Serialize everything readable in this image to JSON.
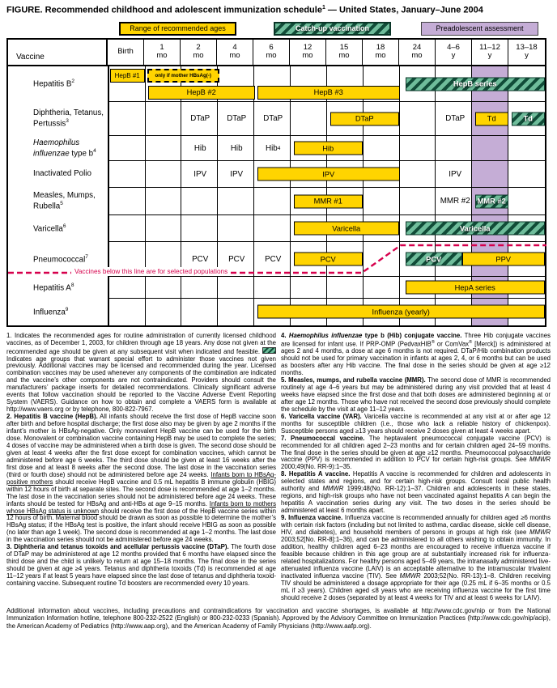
{
  "title": {
    "part1": "FIGURE. Recommended childhood and adolescent immunization schedule",
    "sup": "1",
    "part2": " — United States, January–June 2004"
  },
  "colors": {
    "recommended_yellow": "#FFD400",
    "catchup_green": "#6FBD9B",
    "catchup_stripe": "#114C38",
    "preadolescent_purple": "#C5ADD6",
    "selected_line_red": "#D6004C"
  },
  "legend": {
    "recommended": "Range of recommended ages",
    "catchup": "Catch-up vaccination",
    "preadolescent": "Preadolescent assessment"
  },
  "table": {
    "corner_label": "Vaccine",
    "age_columns": [
      {
        "l1": "Birth",
        "l2": ""
      },
      {
        "l1": "1",
        "l2": "mo"
      },
      {
        "l1": "2",
        "l2": "mo"
      },
      {
        "l1": "4",
        "l2": "mo"
      },
      {
        "l1": "6",
        "l2": "mo"
      },
      {
        "l1": "12",
        "l2": "mo"
      },
      {
        "l1": "15",
        "l2": "mo"
      },
      {
        "l1": "18",
        "l2": "mo"
      },
      {
        "l1": "24",
        "l2": "mo"
      },
      {
        "l1": "4–6",
        "l2": "y"
      },
      {
        "l1": "11–12",
        "l2": "y"
      },
      {
        "l1": "13–18",
        "l2": "y"
      }
    ],
    "rows": {
      "hepb": {
        "label": "Hepatitis B",
        "sup": "2",
        "bars": {
          "b1": "HepB #1",
          "only": "only if mother HBsAg(-)",
          "b2": "HepB #2",
          "b3": "HepB #3",
          "series": "HepB series"
        }
      },
      "dtap": {
        "label1": "Diphtheria, Tetanus,",
        "label2": "Pertussis",
        "sup": "3",
        "cells": {
          "m2": "DTaP",
          "m4": "DTaP",
          "m6": "DTaP",
          "y46": "DTaP"
        },
        "bars": {
          "booster": "DTaP",
          "td": "Td",
          "td_catchup": "Td"
        }
      },
      "hib": {
        "label1": "Haemophilus",
        "label2_italic": "influenzae",
        "label2_rest": " type b",
        "sup": "4",
        "cells": {
          "m2": "Hib",
          "m4": "Hib",
          "m6": "Hib",
          "m6sup": "4"
        },
        "bars": {
          "main": "Hib"
        }
      },
      "polio": {
        "label": "Inactivated Polio",
        "cells": {
          "m2": "IPV",
          "m4": "IPV",
          "y46": "IPV"
        },
        "bars": {
          "main": "IPV"
        }
      },
      "mmr": {
        "label1": "Measles, Mumps,",
        "label2": "Rubella",
        "sup": "5",
        "cells": {
          "y46": "MMR #2"
        },
        "bars": {
          "first": "MMR #1",
          "catchup": "MMR #2"
        }
      },
      "varicella": {
        "label": "Varicella",
        "sup": "6",
        "bars": {
          "main": "Varicella",
          "catchup": "Varicella"
        }
      },
      "pneumo": {
        "label": "Pneumococcal",
        "sup": "7",
        "cells": {
          "m2": "PCV",
          "m4": "PCV",
          "m6": "PCV"
        },
        "bars": {
          "main": "PCV",
          "catchup": "PCV",
          "ppv": "PPV"
        }
      },
      "hepa": {
        "label": "Hepatitis A",
        "sup": "8",
        "bars": {
          "series": "HepA series"
        }
      },
      "influenza": {
        "label": "Influenza",
        "sup": "9",
        "bars": {
          "yearly": "Influenza (yearly)"
        }
      }
    }
  },
  "selected_note": "Vaccines below this line are for selected populations",
  "footnotes": {
    "left": [
      [
        {
          "t": "1. Indicates the recommended ages for routine administration of currently licensed childhood vaccines, as of December 1, 2003, for children through age 18 years. Any dose not given at the recommended age should be given at any subsequent visit when indicated and feasible. "
        },
        {
          "swatch": true
        },
        {
          "t": " Indicates age groups that warrant special effort to administer those vaccines not given previously. Additional vaccines may be licensed and recommended during the year. Licensed combination vaccines may be used whenever any components of the combination are indicated and the vaccine’s other components are not contraindicated. Providers should consult the manufacturers’ package inserts for detailed recommendations. Clinically significant adverse events that follow vaccination should be reported to the Vaccine Adverse Event Reporting System (VAERS). Guidance on how to obtain and complete a VAERS form is available at http://www.vaers.org or by telephone, 800-822-7967."
        }
      ],
      [
        {
          "t": "2. Hepatitis B vaccine (HepB).",
          "b": true
        },
        {
          "t": " All infants should receive the first dose of HepB vaccine soon after birth and before hospital discharge; the first dose also may be given by age 2 months if the infant’s mother is HBsAg-negative. Only monovalent HepB vaccine can be used for the birth dose. Monovalent or combination vaccine containing HepB may be used to complete the series; 4 doses of vaccine may be administered when a birth dose is given. The second dose should be given at least 4 weeks after the first dose except for combination vaccines, which cannot be administered before age 6 weeks. The third dose should be given at least 16 weeks after the first dose and at least 8 weeks after the second dose. The last dose in the vaccination series (third or fourth dose) should not be administered before age 24 weeks. "
        },
        {
          "t": "Infants born to HBsAg-positive mothers",
          "u": true
        },
        {
          "t": " should receive HepB vaccine and 0.5 mL hepatitis B immune globulin (HBIG) within 12 hours of birth at separate sites. The second dose is recommended at age 1–2 months. The last dose in the vaccination series should not be administered before age 24 weeks. These infants should be tested for HBsAg and anti-HBs at age 9–15 months. "
        },
        {
          "t": "Infants born to mothers whose HBsAg status is unknown",
          "u": true
        },
        {
          "t": " should receive the first dose of the HepB vaccine series within 12 hours of birth. Maternal blood should be drawn as soon as possible to determine the mother’s HBsAg status; if the HBsAg test is positive, the infant should receive HBIG as soon as possible (no later than age 1 week). The second dose is recommended at age 1–2 months. The last dose in the vaccination series should not be administered before age 24 weeks."
        }
      ],
      [
        {
          "t": "3. Diphtheria and tetanus toxoids and acellular pertussis vaccine (DTaP).",
          "b": true
        },
        {
          "t": " The fourth dose of DTaP may be administered at age 12 months provided that 6 months have elapsed since the third dose and the child is unlikely to return at age 15–18 months. The final dose in the series should be given at age ≥4 years. Tetanus and diphtheria toxoids (Td) is recommended at age 11–12 years if at least 5 years have elapsed since the last dose of tetanus and diphtheria toxoid-containing vaccine. Subsequent routine Td boosters are recommended every 10 years."
        }
      ]
    ],
    "right": [
      [
        {
          "t": "4. ",
          "b": true
        },
        {
          "t": "Haemophilus influenzae",
          "b": true,
          "i": true
        },
        {
          "t": " type b (Hib) conjugate vaccine.",
          "b": true
        },
        {
          "t": " Three Hib conjugate vaccines are licensed for infant use. If PRP-OMP (PedvaxHIB"
        },
        {
          "t": "®",
          "sup": true
        },
        {
          "t": " or ComVax"
        },
        {
          "t": "®",
          "sup": true
        },
        {
          "t": " [Merck]) is administered at ages 2 and 4 months, a dose at age 6 months is not required. DTaP/Hib combination products should not be used for primary vaccination in infants at ages 2, 4, or 6 months but can be used as boosters after any Hib vaccine. The final dose in the series should be given at age ≥12 months."
        }
      ],
      [
        {
          "t": "5. Measles, mumps, and rubella vaccine (MMR).",
          "b": true
        },
        {
          "t": " The second dose of MMR is recommended routinely at age 4–6 years but may be administered during any visit provided that at least 4 weeks have elapsed since the first dose and that both doses are administered beginning at or after age 12 months. Those who have not received the second dose previously should complete the schedule by the visit at age 11–12 years."
        }
      ],
      [
        {
          "t": "6. Varicella vaccine (VAR).",
          "b": true
        },
        {
          "t": " Varicella vaccine is recommended at any visit at or after age 12 months for susceptible children (i.e., those who lack a reliable history of chickenpox). Susceptible persons aged ≥13 years should receive 2 doses given at least 4 weeks apart."
        }
      ],
      [
        {
          "t": "7. Pneumococcal vaccine.",
          "b": true
        },
        {
          "t": " The heptavalent pneumococcal conjugate vaccine (PCV) is recommended for all children aged 2–23 months and for certain children aged 24–59 months. The final dose in the series should be given at age ≥12 months. Pneumococcal polysaccharide vaccine (PPV) is recommended in addition to PCV for certain high-risk groups. See "
        },
        {
          "t": "MMWR",
          "i": true
        },
        {
          "t": " 2000;49(No. RR-9):1–35."
        }
      ],
      [
        {
          "t": "8. Hepatitis A vaccine.",
          "b": true
        },
        {
          "t": " Hepatitis A vaccine is recommended for children and adolescents in selected states and regions, and for certain high-risk groups. Consult local public health authority and "
        },
        {
          "t": "MMWR",
          "i": true
        },
        {
          "t": " 1999;48(No. RR-12):1–37. Children and adolescents in these states, regions, and high-risk groups who have not been vaccinated against hepatitis A can begin the hepatitis A vaccination series during any visit. The two doses in the series should be administered at least 6 months apart."
        }
      ],
      [
        {
          "t": "9. Influenza vaccine.",
          "b": true
        },
        {
          "t": " Influenza vaccine is recommended annually for children aged ≥6 months with certain risk factors (including but not limited to asthma, cardiac disease, sickle cell disease, HIV, and diabetes), and household members of persons in groups at high risk (see "
        },
        {
          "t": "MMWR",
          "i": true
        },
        {
          "t": " 2003;52[No. RR-8]:1–36), and can be administered to all others wishing to obtain immunity. In addition, healthy children aged 6–23 months are encouraged to receive influenza vaccine if feasible because children in this age group are at substantially increased risk for influenza-related hospitalizations. For healthy persons aged 5–49 years, the intranasally administered live-attenuated influenza vaccine (LAIV) is an acceptable alternative to the intramuscular trivalent inactivated influenza vaccine (TIV). See "
        },
        {
          "t": "MMWR",
          "i": true
        },
        {
          "t": " 2003;52(No. RR-13):1–8. Children receiving TIV should be administered a dosage appropriate for their age (0.25 mL if 6–35 months or 0.5 mL if ≥3 years). Children aged ≤8 years who are receiving influenza vaccine for the first time should receive 2 doses (separated by at least 4 weeks for TIV and at least 6 weeks for LAIV)."
        }
      ]
    ]
  },
  "footer": [
    [
      {
        "t": "Additional information about vaccines, including precautions and contraindications for vaccination and vaccine shortages, is available at http://www.cdc.gov/nip or from the National Immunization Information hotline, telephone 800-232-2522 (English) or 800-232-0233 (Spanish). Approved by the Advisory Committee on Immunization Practices (http://www.cdc.gov/nip/acip), the American Academy of Pediatrics (http://www.aap.org), and the American Academy of Family Physicians (http://www.aafp.org)."
      }
    ]
  ]
}
